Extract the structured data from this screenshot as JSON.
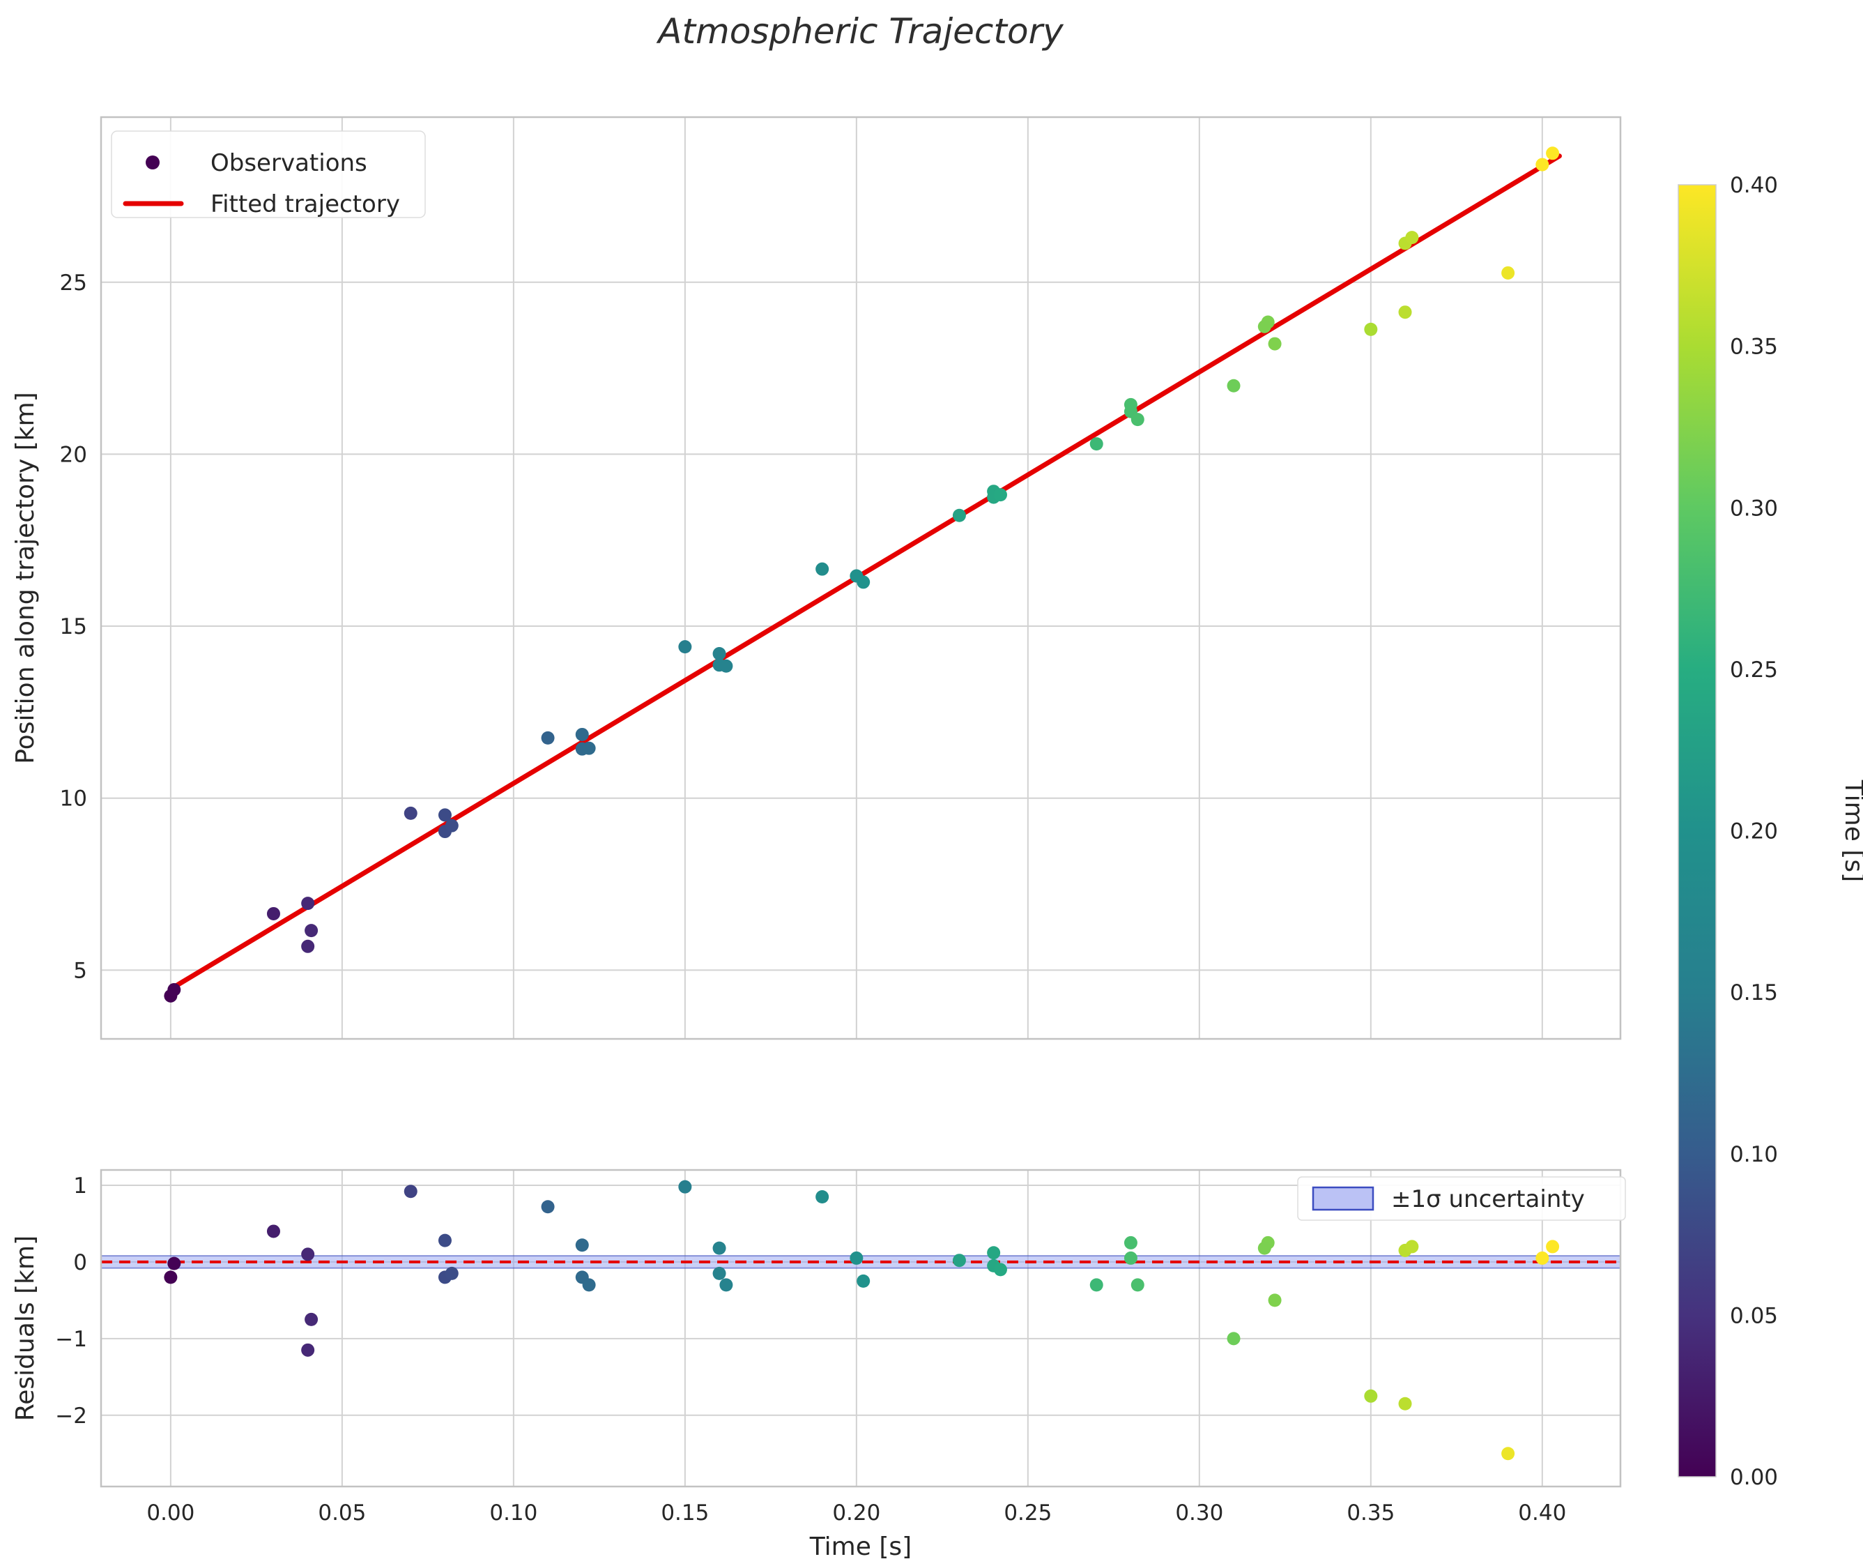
{
  "title": "Atmospheric Trajectory",
  "chart_data": {
    "type": "scatter",
    "title": "Atmospheric Trajectory",
    "x_axis": {
      "label": "Time [s]",
      "tick_values": [
        0.0,
        0.05,
        0.1,
        0.15,
        0.2,
        0.25,
        0.3,
        0.35,
        0.4
      ],
      "tick_labels": [
        "0.00",
        "0.05",
        "0.10",
        "0.15",
        "0.20",
        "0.25",
        "0.30",
        "0.35",
        "0.40"
      ],
      "lim": [
        -0.0203,
        0.4228
      ]
    },
    "main": {
      "ylabel": "Position along trajectory [km]",
      "ytick_values": [
        5,
        10,
        15,
        20,
        25
      ],
      "ytick_labels": [
        "5",
        "10",
        "15",
        "20",
        "25"
      ],
      "ylim": [
        3.0,
        29.8
      ],
      "legend": [
        {
          "label": "Observations",
          "marker": "dot"
        },
        {
          "label": "Fitted trajectory",
          "marker": "line"
        }
      ],
      "fit_line": {
        "x": [
          0.0,
          0.405
        ],
        "y": [
          4.45,
          28.67
        ],
        "color": "#e50000",
        "width": 7
      }
    },
    "residuals": {
      "ylabel": "Residuals [km]",
      "ytick_values": [
        -2,
        -1,
        0,
        1
      ],
      "ytick_labels": [
        "−2",
        "−1",
        "0",
        "1"
      ],
      "ylim": [
        -2.93,
        1.2
      ],
      "zero_line": {
        "color": "#e50000",
        "style": "dashed"
      },
      "band": {
        "label": "±1σ uncertainty",
        "halfwidth": 0.08,
        "fill": "#96a2f0",
        "fill_opacity": 0.5,
        "edge": "#3b4cc0"
      }
    },
    "colorbar": {
      "label": "Time [s]",
      "lim": [
        0.0,
        0.4
      ],
      "tick_values": [
        0.0,
        0.05,
        0.1,
        0.15,
        0.2,
        0.25,
        0.3,
        0.35,
        0.4
      ],
      "tick_labels": [
        "0.00",
        "0.05",
        "0.10",
        "0.15",
        "0.20",
        "0.25",
        "0.30",
        "0.35",
        "0.40"
      ],
      "colormap": "viridis",
      "stops": [
        "#440154",
        "#46327e",
        "#365c8d",
        "#277f8e",
        "#21918c",
        "#27ad81",
        "#5ec962",
        "#aadc32",
        "#fde725"
      ]
    },
    "points": [
      [
        0.0,
        4.25,
        -0.2
      ],
      [
        0.001,
        4.43,
        -0.02
      ],
      [
        0.03,
        6.64,
        0.4
      ],
      [
        0.04,
        6.94,
        0.1
      ],
      [
        0.041,
        6.15,
        -0.75
      ],
      [
        0.04,
        5.69,
        -1.15
      ],
      [
        0.07,
        9.56,
        0.92
      ],
      [
        0.08,
        9.51,
        0.28
      ],
      [
        0.08,
        9.03,
        -0.2
      ],
      [
        0.082,
        9.2,
        -0.15
      ],
      [
        0.11,
        11.75,
        0.72
      ],
      [
        0.12,
        11.85,
        0.22
      ],
      [
        0.12,
        11.43,
        -0.2
      ],
      [
        0.122,
        11.45,
        -0.3
      ],
      [
        0.15,
        14.4,
        0.98
      ],
      [
        0.16,
        14.2,
        0.18
      ],
      [
        0.16,
        13.87,
        -0.15
      ],
      [
        0.162,
        13.84,
        -0.3
      ],
      [
        0.19,
        16.66,
        0.85
      ],
      [
        0.2,
        16.46,
        0.05
      ],
      [
        0.202,
        16.28,
        -0.25
      ],
      [
        0.23,
        18.22,
        0.02
      ],
      [
        0.24,
        18.92,
        0.12
      ],
      [
        0.24,
        18.75,
        -0.05
      ],
      [
        0.242,
        18.82,
        -0.1
      ],
      [
        0.27,
        20.3,
        -0.3
      ],
      [
        0.28,
        21.44,
        0.25
      ],
      [
        0.28,
        21.24,
        0.05
      ],
      [
        0.282,
        21.01,
        -0.3
      ],
      [
        0.31,
        21.99,
        -1.0
      ],
      [
        0.32,
        23.84,
        0.25
      ],
      [
        0.319,
        23.71,
        0.18
      ],
      [
        0.322,
        23.21,
        -0.5
      ],
      [
        0.35,
        23.63,
        -1.75
      ],
      [
        0.36,
        26.13,
        0.15
      ],
      [
        0.362,
        26.3,
        0.2
      ],
      [
        0.36,
        24.13,
        -1.85
      ],
      [
        0.39,
        25.27,
        -2.5
      ],
      [
        0.4,
        28.42,
        0.05
      ],
      [
        0.403,
        28.75,
        0.2
      ]
    ]
  }
}
